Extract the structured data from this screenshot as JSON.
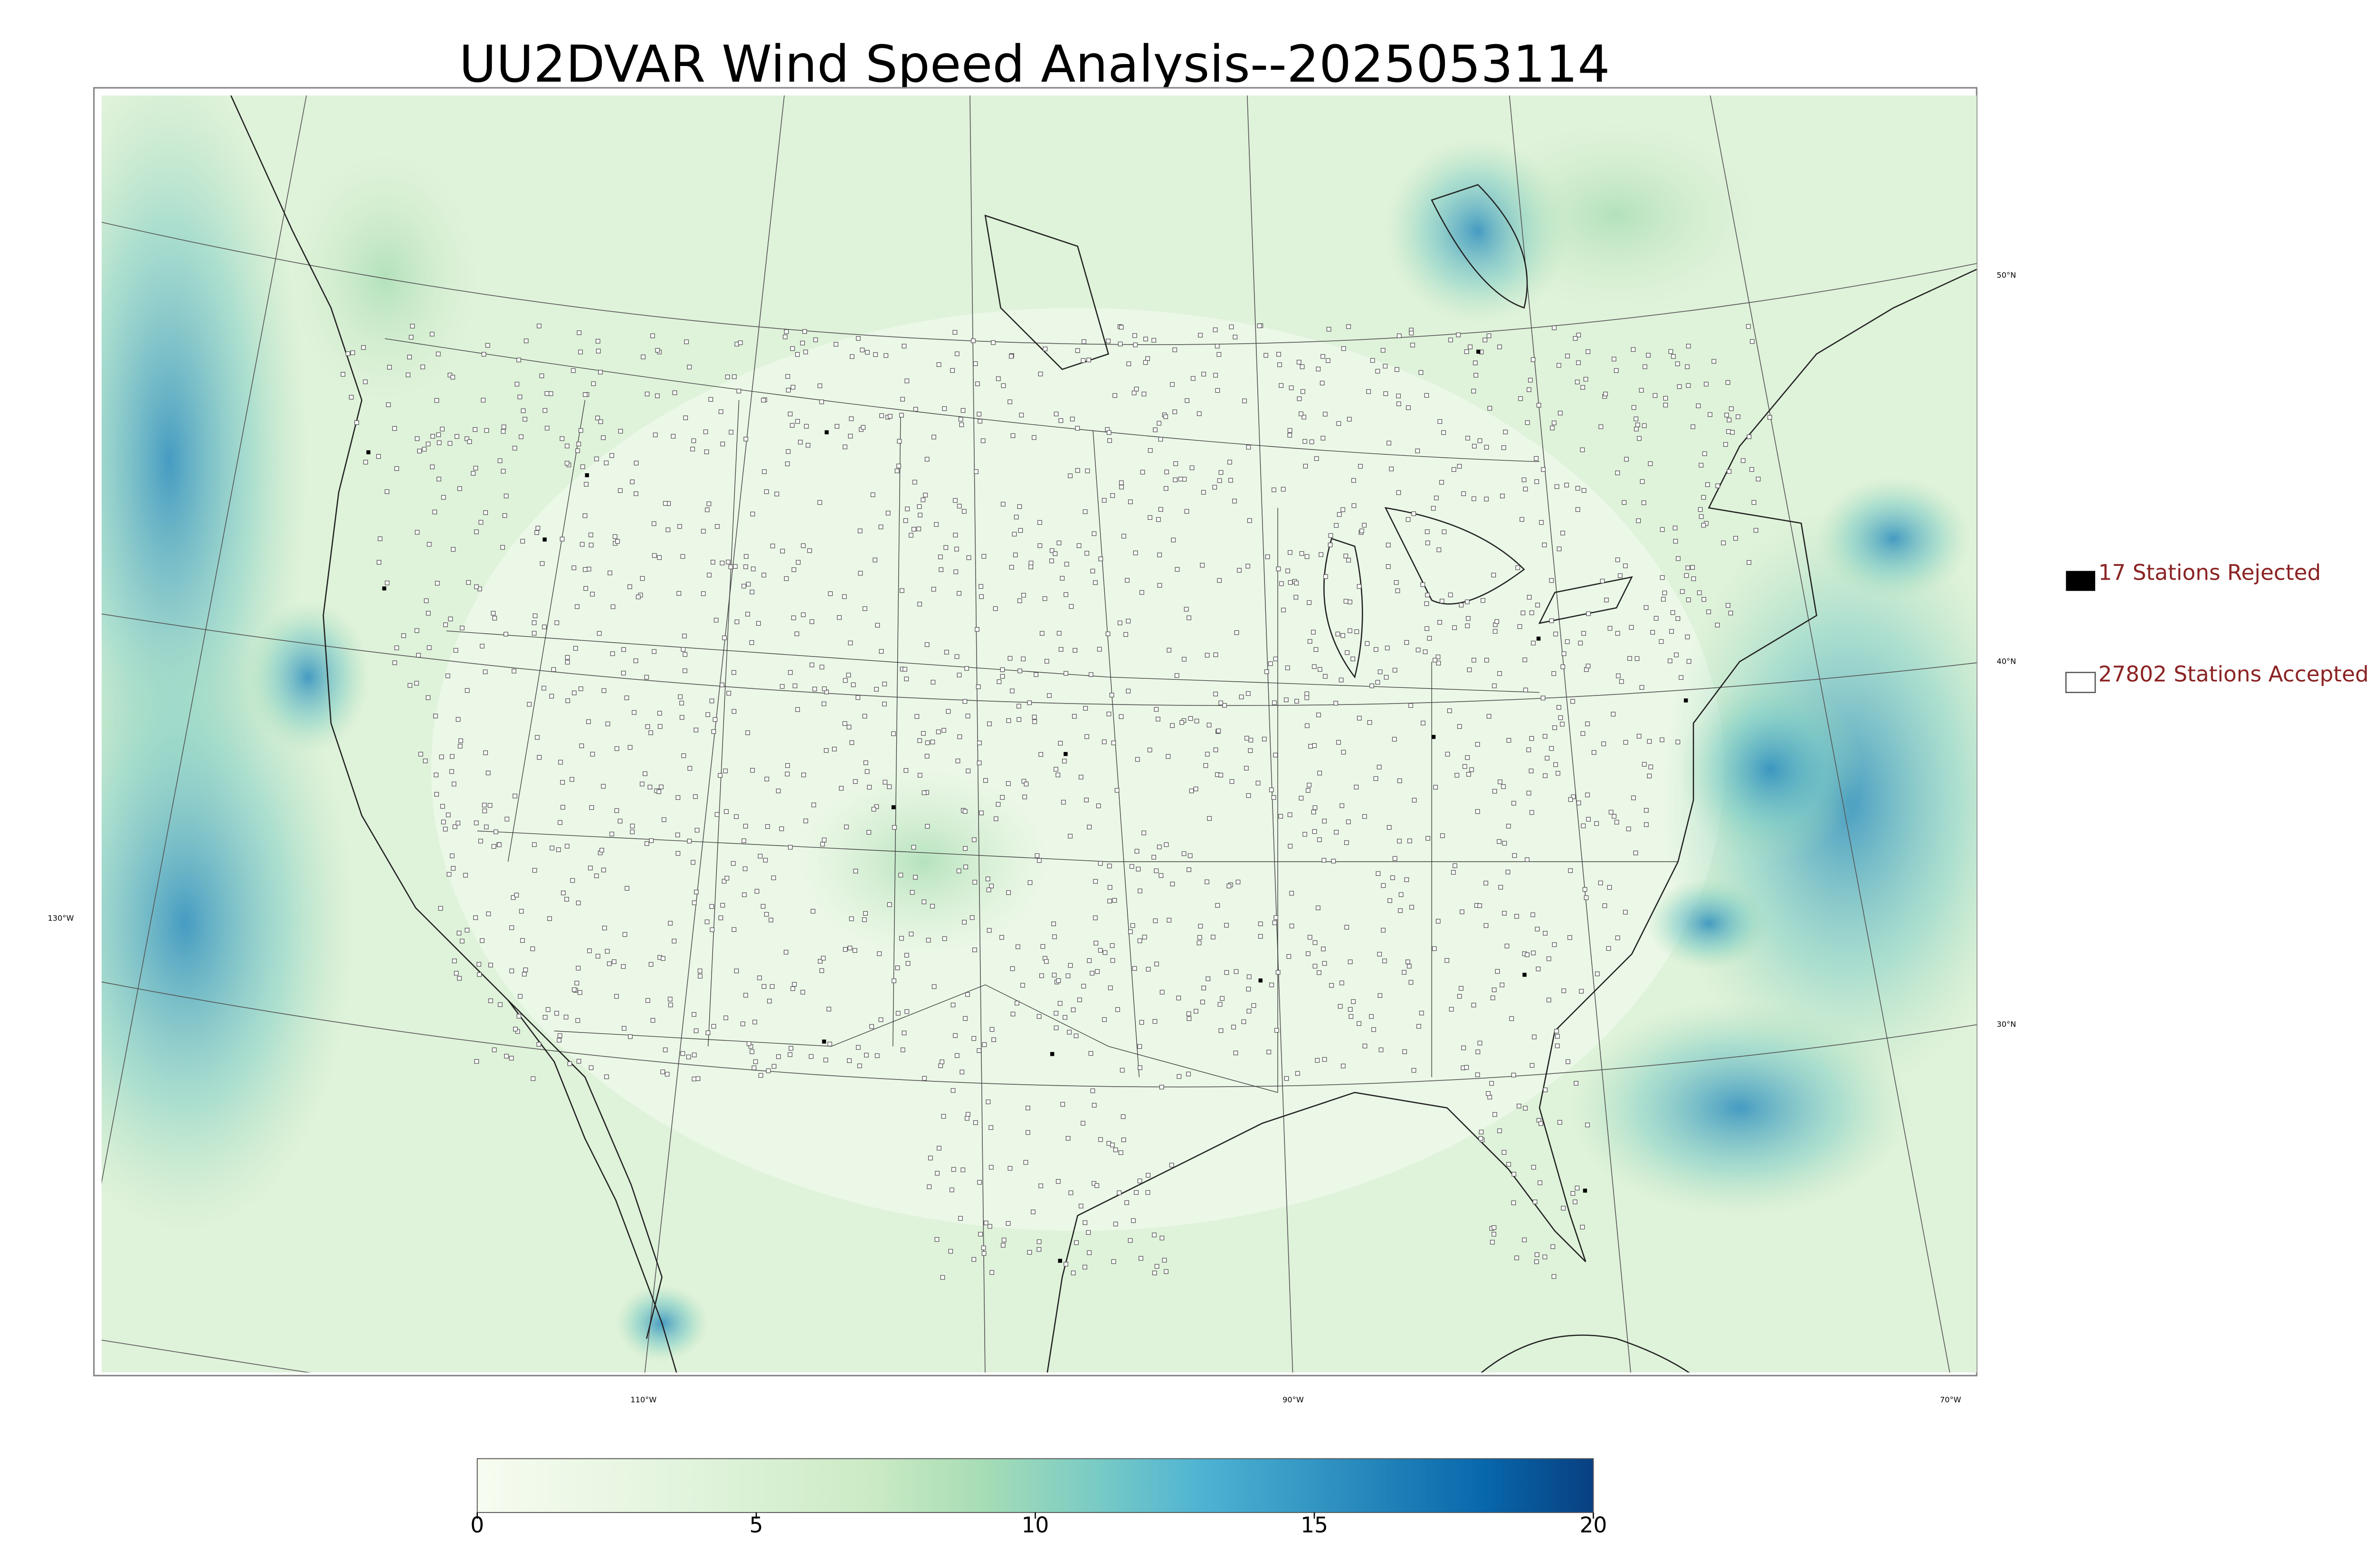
{
  "title": "UU2DVAR Wind Speed Analysis--2025053114",
  "legend": [
    {
      "label": "17 Stations Rejected"
    },
    {
      "label": "27802 Stations Accepted"
    }
  ],
  "latitude_labels": [
    "50°N",
    "40°N",
    "30°N"
  ],
  "longitude_labels": [
    "130°W",
    "110°W",
    "90°W",
    "70°W"
  ],
  "colorbar": {
    "lim": [
      0,
      20
    ],
    "ticks": [
      0,
      5,
      10,
      15,
      20
    ]
  }
}
